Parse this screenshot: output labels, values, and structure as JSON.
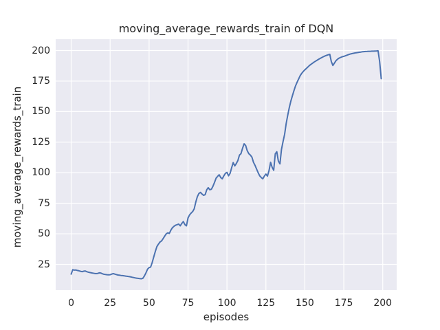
{
  "chart_data": {
    "type": "line",
    "title": "moving_average_rewards_train of DQN",
    "xlabel": "episodes",
    "ylabel": "moving_average_rewards_train",
    "xticks": [
      0,
      25,
      50,
      75,
      100,
      125,
      150,
      175,
      200
    ],
    "yticks": [
      25,
      50,
      75,
      100,
      125,
      150,
      175,
      200
    ],
    "xlim": [
      -9.95,
      208.95
    ],
    "ylim": [
      3.9,
      209.3
    ],
    "grid": true,
    "legend": "none",
    "x": {
      "start": 0,
      "step": 1
    },
    "values": [
      17.0,
      20.6,
      20.3,
      20.4,
      20.0,
      19.7,
      19.3,
      19.0,
      19.4,
      19.6,
      19.0,
      18.6,
      18.3,
      18.0,
      17.8,
      17.6,
      17.4,
      17.6,
      18.0,
      17.9,
      17.3,
      16.9,
      16.7,
      16.5,
      16.4,
      16.5,
      17.0,
      17.4,
      17.0,
      16.6,
      16.3,
      16.1,
      15.9,
      15.8,
      15.6,
      15.4,
      15.2,
      15.0,
      14.8,
      14.5,
      14.2,
      13.9,
      13.7,
      13.5,
      13.3,
      13.2,
      13.6,
      15.5,
      18.0,
      21.0,
      22.3,
      22.8,
      26.5,
      31.0,
      35.5,
      39.5,
      41.5,
      43.3,
      44.2,
      46.0,
      48.0,
      50.0,
      50.8,
      50.3,
      53.0,
      55.0,
      56.2,
      57.0,
      57.5,
      58.0,
      56.5,
      58.5,
      60.0,
      57.5,
      56.5,
      63.0,
      65.5,
      67.0,
      68.3,
      70.5,
      76.0,
      80.5,
      83.0,
      83.9,
      82.5,
      81.5,
      82.0,
      86.0,
      87.8,
      86.0,
      86.5,
      88.9,
      92.0,
      95.5,
      97.0,
      98.3,
      96.0,
      95.0,
      97.5,
      99.5,
      100.3,
      97.5,
      99.5,
      104.0,
      108.3,
      105.6,
      107.5,
      110.0,
      114.4,
      115.6,
      120.0,
      123.7,
      122.3,
      118.0,
      115.6,
      114.5,
      112.8,
      108.5,
      106.1,
      103.0,
      100.0,
      97.5,
      96.1,
      95.0,
      97.2,
      98.9,
      97.2,
      101.7,
      108.5,
      104.5,
      102.0,
      115.5,
      117.2,
      109.5,
      107.2,
      119.0,
      125.5,
      131.5,
      140.0,
      147.0,
      153.3,
      158.5,
      163.0,
      167.2,
      171.0,
      174.0,
      176.8,
      179.4,
      181.4,
      182.9,
      184.2,
      185.4,
      186.6,
      187.8,
      188.8,
      189.7,
      190.6,
      191.4,
      192.2,
      193.0,
      193.7,
      194.4,
      195.0,
      195.6,
      196.1,
      196.5,
      196.9,
      191.0,
      187.8,
      189.8,
      191.7,
      192.9,
      193.8,
      194.4,
      194.9,
      195.3,
      195.7,
      196.2,
      196.7,
      197.1,
      197.4,
      197.7,
      198.0,
      198.2,
      198.4,
      198.6,
      198.8,
      199.0,
      199.1,
      199.2,
      199.3,
      199.4,
      199.4,
      199.5,
      199.5,
      199.6,
      199.7,
      199.8,
      191.0,
      177.0
    ],
    "colors": {
      "line": "#4C72B0",
      "axes_bg": "#EAEAF2",
      "grid": "#FFFFFF",
      "text": "#262626",
      "fig_bg": "#FFFFFF"
    }
  }
}
